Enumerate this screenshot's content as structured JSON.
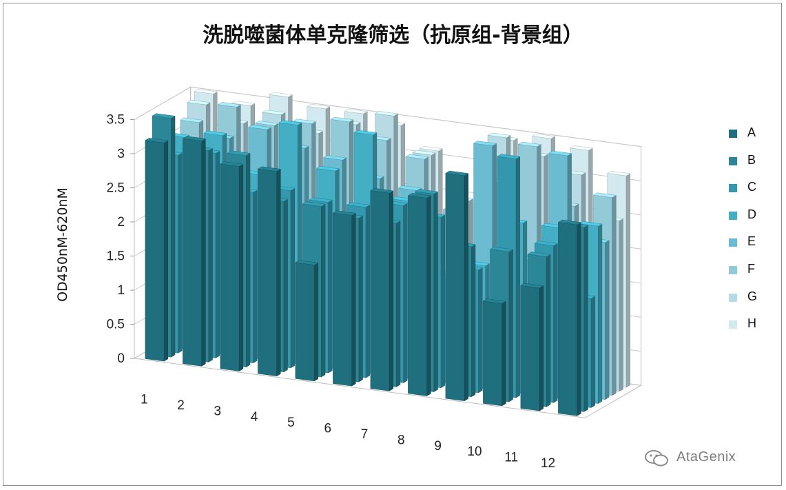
{
  "chart_data": {
    "type": "bar",
    "subtype": "3d-column",
    "title": "洗脱噬菌体单克隆筛选（抗原组-背景组）",
    "ylabel": "OD450nM-620nM",
    "xlabel": "",
    "ylim": [
      0,
      3.5
    ],
    "yticks": [
      "0",
      "0.5",
      "1",
      "1.5",
      "2",
      "2.5",
      "3",
      "3.5"
    ],
    "categories": [
      "1",
      "2",
      "3",
      "4",
      "5",
      "6",
      "7",
      "8",
      "9",
      "10",
      "11",
      "12"
    ],
    "legend_position": "right",
    "gridlines": true,
    "series": [
      {
        "name": "A",
        "color": "#1f6f7f",
        "values": [
          3.2,
          3.3,
          3.0,
          3.0,
          1.7,
          2.5,
          2.9,
          2.9,
          3.3,
          1.5,
          1.8,
          2.8
        ]
      },
      {
        "name": "B",
        "color": "#2b8798",
        "values": [
          3.5,
          3.1,
          3.1,
          2.5,
          2.5,
          2.4,
          2.4,
          2.9,
          2.2,
          2.2,
          2.2,
          2.7
        ]
      },
      {
        "name": "C",
        "color": "#3398ad",
        "values": [
          2.9,
          3.0,
          2.5,
          2.6,
          2.5,
          2.5,
          2.6,
          2.5,
          1.8,
          3.5,
          2.3,
          1.6
        ]
      },
      {
        "name": "D",
        "color": "#43aec4",
        "values": [
          3.1,
          3.2,
          2.7,
          3.5,
          2.9,
          3.5,
          2.6,
          1.6,
          1.8,
          2.5,
          2.5,
          2.6
        ]
      },
      {
        "name": "E",
        "color": "#6bbcd0",
        "values": [
          3.0,
          3.1,
          3.3,
          3.1,
          3.0,
          2.8,
          2.7,
          1.5,
          3.5,
          1.9,
          3.5,
          2.3
        ]
      },
      {
        "name": "F",
        "color": "#93cad8",
        "values": [
          3.2,
          3.5,
          3.3,
          3.4,
          3.5,
          3.3,
          3.1,
          2.4,
          2.9,
          3.5,
          2.7,
          2.9
        ]
      },
      {
        "name": "G",
        "color": "#b7dae4",
        "values": [
          3.4,
          3.2,
          3.4,
          3.2,
          3.4,
          3.6,
          3.1,
          2.5,
          3.5,
          3.3,
          3.1,
          2.5
        ]
      },
      {
        "name": "H",
        "color": "#d3e9f0",
        "values": [
          3.5,
          3.4,
          3.6,
          3.5,
          3.5,
          3.4,
          3.1,
          2.4,
          3.4,
          3.5,
          3.4,
          3.1
        ]
      }
    ]
  },
  "watermark": {
    "text": "AtaGenix",
    "icon": "wechat-icon"
  }
}
